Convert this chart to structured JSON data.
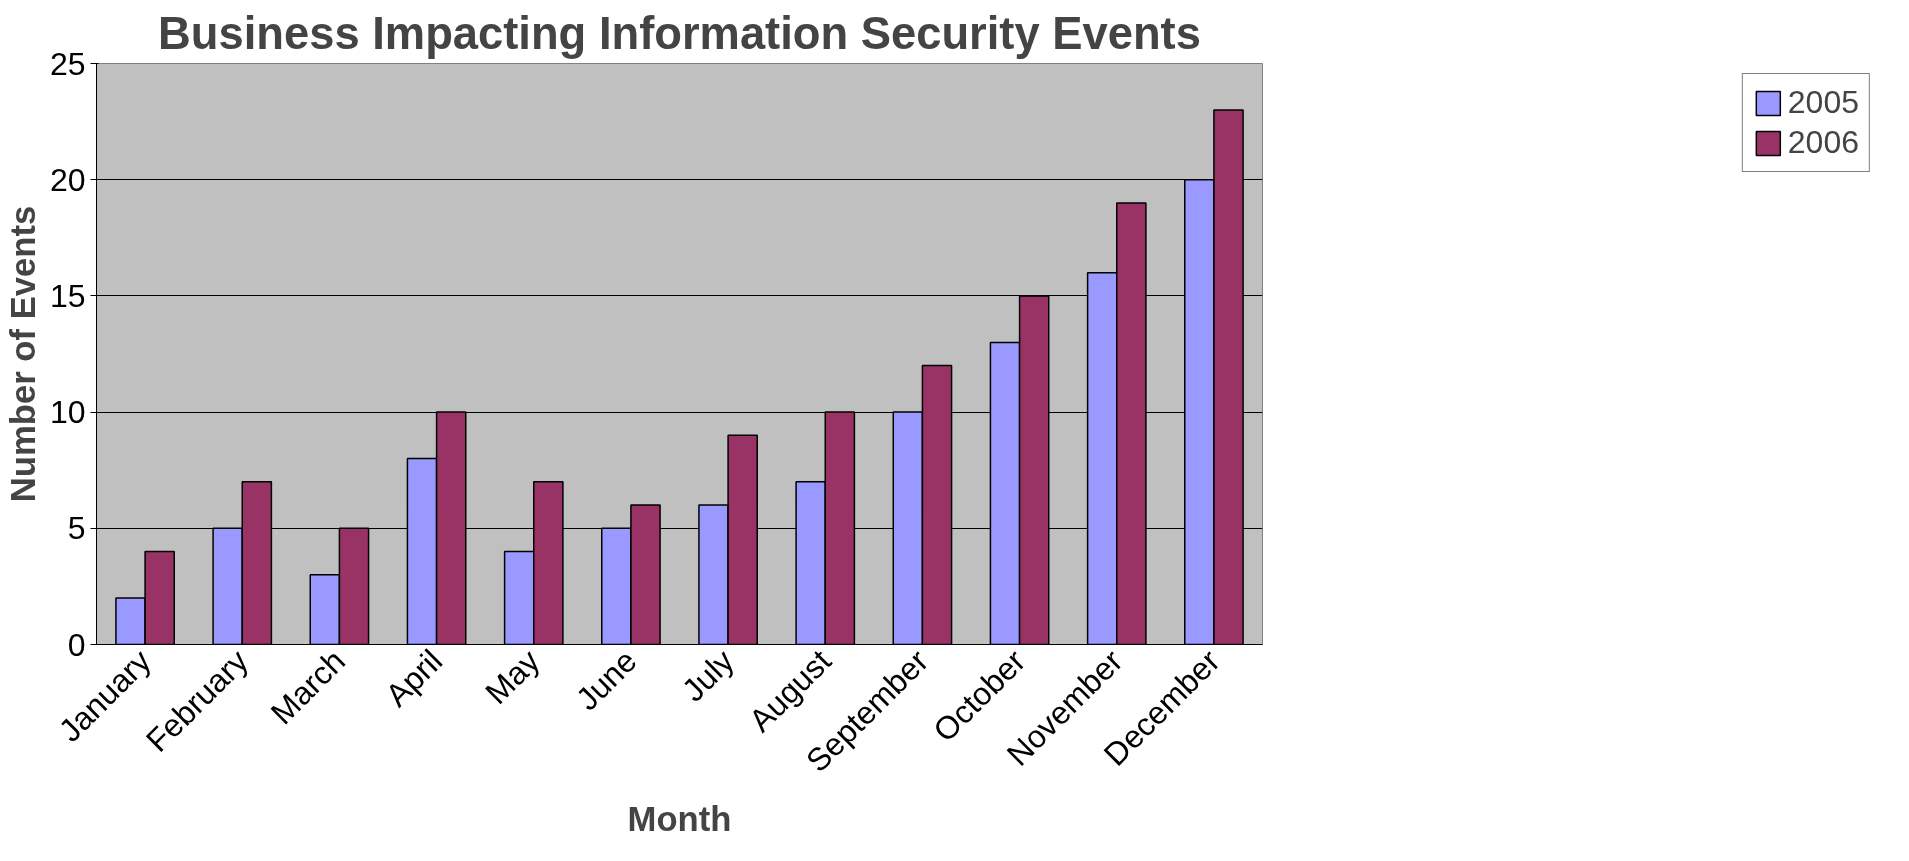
{
  "chart_data": {
    "type": "bar",
    "title": "Business Impacting Information Security Events",
    "xlabel": "Month",
    "ylabel": "Number of Events",
    "categories": [
      "January",
      "February",
      "March",
      "April",
      "May",
      "June",
      "July",
      "August",
      "September",
      "October",
      "November",
      "December"
    ],
    "series": [
      {
        "name": "2005",
        "color": "#9999ff",
        "values": [
          2,
          5,
          3,
          8,
          4,
          5,
          6,
          7,
          10,
          13,
          16,
          20
        ]
      },
      {
        "name": "2006",
        "color": "#993366",
        "values": [
          4,
          7,
          5,
          10,
          7,
          6,
          9,
          10,
          12,
          15,
          19,
          23
        ]
      }
    ],
    "ylim": [
      0,
      25
    ],
    "yticks": [
      0,
      5,
      10,
      15,
      20,
      25
    ],
    "grid": "y",
    "legend": "right"
  }
}
